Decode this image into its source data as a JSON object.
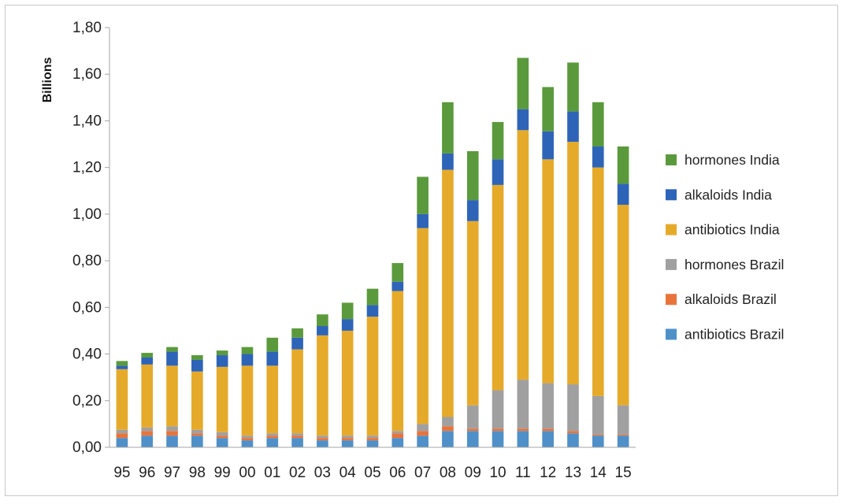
{
  "chart_data": {
    "type": "bar",
    "stacked": true,
    "ylabel": "Billions",
    "ylim": [
      0,
      1.8
    ],
    "yticks": [
      "0,00",
      "0,20",
      "0,40",
      "0,60",
      "0,80",
      "1,00",
      "1,20",
      "1,40",
      "1,60",
      "1,80"
    ],
    "grid": false,
    "legend_position": "right",
    "categories": [
      "95",
      "96",
      "97",
      "98",
      "99",
      "00",
      "01",
      "02",
      "03",
      "04",
      "05",
      "06",
      "07",
      "08",
      "09",
      "10",
      "11",
      "12",
      "13",
      "14",
      "15"
    ],
    "series": [
      {
        "name": "antibiotics Brazil",
        "color": "#4f90c8",
        "values": [
          0.04,
          0.05,
          0.05,
          0.05,
          0.04,
          0.03,
          0.04,
          0.04,
          0.03,
          0.03,
          0.03,
          0.04,
          0.05,
          0.07,
          0.07,
          0.07,
          0.07,
          0.07,
          0.06,
          0.05,
          0.05
        ]
      },
      {
        "name": "alkaloids Brazil",
        "color": "#e8743b",
        "values": [
          0.02,
          0.02,
          0.02,
          0.01,
          0.01,
          0.01,
          0.01,
          0.01,
          0.01,
          0.01,
          0.01,
          0.02,
          0.02,
          0.02,
          0.01,
          0.01,
          0.01,
          0.01,
          0.01,
          0.005,
          0.005
        ]
      },
      {
        "name": "hormones Brazil",
        "color": "#a0a0a0",
        "values": [
          0.015,
          0.015,
          0.02,
          0.015,
          0.015,
          0.01,
          0.01,
          0.01,
          0.01,
          0.01,
          0.01,
          0.01,
          0.03,
          0.04,
          0.1,
          0.165,
          0.21,
          0.195,
          0.2,
          0.165,
          0.125
        ]
      },
      {
        "name": "antibiotics India",
        "color": "#e6aa2a",
        "values": [
          0.26,
          0.27,
          0.26,
          0.25,
          0.28,
          0.3,
          0.29,
          0.36,
          0.43,
          0.45,
          0.51,
          0.6,
          0.84,
          1.06,
          0.79,
          0.88,
          1.07,
          0.96,
          1.04,
          0.98,
          0.86
        ]
      },
      {
        "name": "alkaloids India",
        "color": "#2e64b8",
        "values": [
          0.015,
          0.03,
          0.06,
          0.05,
          0.05,
          0.05,
          0.06,
          0.05,
          0.04,
          0.05,
          0.05,
          0.04,
          0.06,
          0.07,
          0.09,
          0.11,
          0.09,
          0.12,
          0.13,
          0.09,
          0.09
        ]
      },
      {
        "name": "hormones India",
        "color": "#5a9a3c",
        "values": [
          0.02,
          0.02,
          0.02,
          0.02,
          0.02,
          0.03,
          0.06,
          0.04,
          0.05,
          0.07,
          0.07,
          0.08,
          0.16,
          0.22,
          0.21,
          0.16,
          0.22,
          0.19,
          0.21,
          0.19,
          0.16
        ]
      }
    ],
    "legend_order": [
      "hormones India",
      "alkaloids India",
      "antibiotics India",
      "hormones Brazil",
      "alkaloids Brazil",
      "antibiotics Brazil"
    ]
  }
}
